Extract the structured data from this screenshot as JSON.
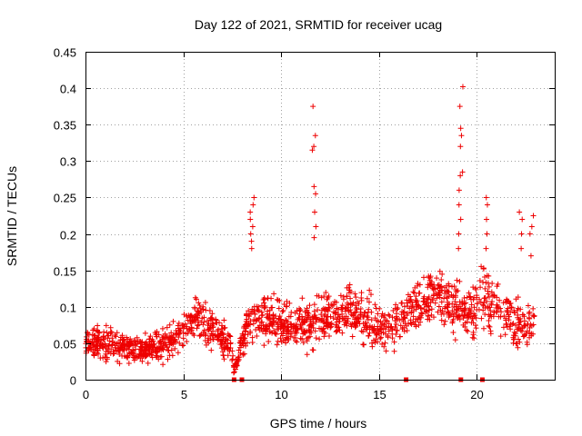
{
  "chart_data": {
    "type": "scatter",
    "title": "Day 122 of 2021, SRMTID for receiver ucag",
    "xlabel": "GPS time / hours",
    "ylabel": "SRMTID / TECUs",
    "xlim": [
      0,
      24
    ],
    "ylim": [
      0,
      0.45
    ],
    "xticks": [
      0,
      5,
      10,
      15,
      20
    ],
    "xtick_labels": [
      "0",
      "5",
      "10",
      "15",
      "20"
    ],
    "yticks": [
      0,
      0.05,
      0.1,
      0.15,
      0.2,
      0.25,
      0.3,
      0.35,
      0.4,
      0.45
    ],
    "ytick_labels": [
      "0",
      "0.05",
      "0.1",
      "0.15",
      "0.2",
      "0.25",
      "0.3",
      "0.35",
      "0.4",
      "0.45"
    ],
    "grid": true,
    "marker": "+",
    "color": "#ee0000",
    "gap_markers_x": [
      7.6,
      8.0,
      16.4,
      19.2,
      20.3
    ],
    "spikes": [
      {
        "x": 8.5,
        "y": [
          0.25,
          0.24,
          0.23,
          0.22,
          0.21,
          0.2,
          0.19,
          0.18
        ]
      },
      {
        "x": 11.7,
        "y": [
          0.375,
          0.335,
          0.32,
          0.315,
          0.265,
          0.255,
          0.23,
          0.21,
          0.195
        ]
      },
      {
        "x": 19.2,
        "y": [
          0.402,
          0.375,
          0.345,
          0.335,
          0.32,
          0.285,
          0.28,
          0.26,
          0.24,
          0.22,
          0.2,
          0.18
        ]
      },
      {
        "x": 20.6,
        "y": [
          0.25,
          0.24,
          0.22,
          0.2,
          0.18
        ]
      },
      {
        "x": 22.3,
        "y": [
          0.23,
          0.22,
          0.2,
          0.18
        ]
      },
      {
        "x": 22.8,
        "y": [
          0.225,
          0.21,
          0.2,
          0.17
        ]
      }
    ],
    "envelope": {
      "x": [
        0.0,
        1.0,
        2.0,
        3.0,
        4.0,
        5.0,
        5.6,
        6.5,
        7.4,
        7.6,
        8.3,
        9.0,
        10.0,
        10.8,
        11.5,
        12.5,
        13.5,
        14.5,
        15.5,
        16.3,
        16.8,
        17.5,
        18.3,
        18.9,
        19.3,
        19.6,
        20.3,
        20.8,
        21.5,
        22.2,
        23.0
      ],
      "base": [
        0.05,
        0.05,
        0.045,
        0.04,
        0.05,
        0.065,
        0.085,
        0.07,
        0.05,
        0.01,
        0.08,
        0.085,
        0.075,
        0.07,
        0.08,
        0.085,
        0.095,
        0.08,
        0.065,
        0.085,
        0.1,
        0.115,
        0.11,
        0.1,
        0.1,
        0.09,
        0.12,
        0.1,
        0.09,
        0.075,
        0.08
      ],
      "amp": [
        0.02,
        0.025,
        0.02,
        0.02,
        0.02,
        0.025,
        0.03,
        0.03,
        0.025,
        0.005,
        0.03,
        0.04,
        0.03,
        0.035,
        0.035,
        0.035,
        0.04,
        0.035,
        0.03,
        0.03,
        0.035,
        0.04,
        0.045,
        0.04,
        0.04,
        0.035,
        0.045,
        0.04,
        0.035,
        0.035,
        0.03
      ]
    },
    "samples": 1700,
    "seed": 122
  }
}
